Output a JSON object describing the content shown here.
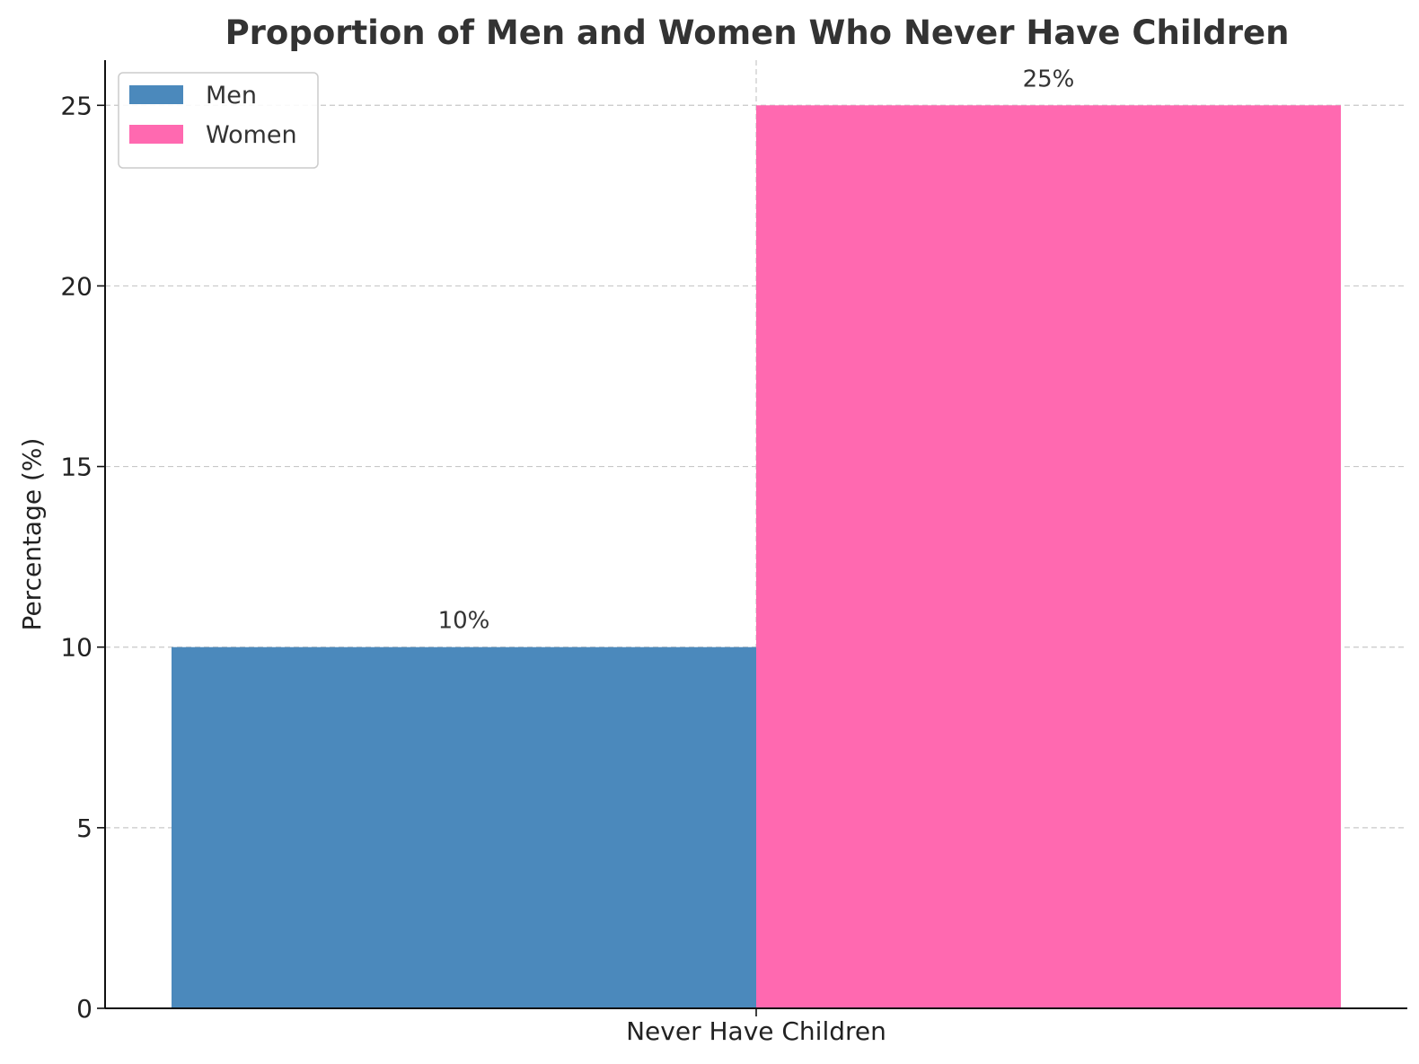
{
  "chart_data": {
    "type": "bar",
    "title": "Proportion of Men and Women Who Never Have Children",
    "xlabel": "",
    "ylabel": "Percentage (%)",
    "categories": [
      "Never Have Children"
    ],
    "series": [
      {
        "name": "Men",
        "values": [
          10
        ],
        "label": "10%",
        "color": "#4b89bc"
      },
      {
        "name": "Women",
        "values": [
          25
        ],
        "label": "25%",
        "color": "#ff69b0"
      }
    ],
    "ylim": [
      0,
      26.25
    ],
    "yticks": [
      0,
      5,
      10,
      15,
      20,
      25
    ],
    "grid": true,
    "legend_position": "top-left"
  }
}
